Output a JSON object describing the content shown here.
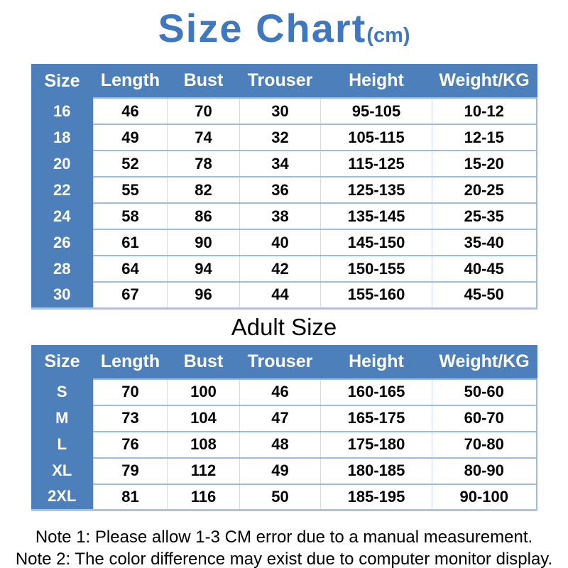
{
  "page": {
    "title": "Size Chart",
    "title_unit": "(cm)",
    "adult_section_title": "Adult Size"
  },
  "colors": {
    "table_header_blue": "#4d80bb",
    "title_blue": "#3f78be",
    "row_border_blue": "#9cbcdf",
    "column_border_blue": "#ccdcee",
    "header_text": "#ffffff",
    "cell_text": "#000000"
  },
  "notes": [
    "Note 1: Please allow 1-3 CM error due to a manual measurement.",
    "Note 2: The color difference may exist due to computer monitor display."
  ],
  "chart_data": [
    {
      "type": "table",
      "title": "Size Chart (cm) - child sizes",
      "columns": [
        "Size",
        "Length",
        "Bust",
        "Trouser",
        "Height",
        "Weight/KG"
      ],
      "rows": [
        [
          "16",
          "46",
          "70",
          "30",
          "95-105",
          "10-12"
        ],
        [
          "18",
          "49",
          "74",
          "32",
          "105-115",
          "12-15"
        ],
        [
          "20",
          "52",
          "78",
          "34",
          "115-125",
          "15-20"
        ],
        [
          "22",
          "55",
          "82",
          "36",
          "125-135",
          "20-25"
        ],
        [
          "24",
          "58",
          "86",
          "38",
          "135-145",
          "25-35"
        ],
        [
          "26",
          "61",
          "90",
          "40",
          "145-150",
          "35-40"
        ],
        [
          "28",
          "64",
          "94",
          "42",
          "150-155",
          "40-45"
        ],
        [
          "30",
          "67",
          "96",
          "44",
          "155-160",
          "45-50"
        ]
      ]
    },
    {
      "type": "table",
      "title": "Adult Size",
      "columns": [
        "Size",
        "Length",
        "Bust",
        "Trouser",
        "Height",
        "Weight/KG"
      ],
      "rows": [
        [
          "S",
          "70",
          "100",
          "46",
          "160-165",
          "50-60"
        ],
        [
          "M",
          "73",
          "104",
          "47",
          "165-175",
          "60-70"
        ],
        [
          "L",
          "76",
          "108",
          "48",
          "175-180",
          "70-80"
        ],
        [
          "XL",
          "79",
          "112",
          "49",
          "180-185",
          "80-90"
        ],
        [
          "2XL",
          "81",
          "116",
          "50",
          "185-195",
          "90-100"
        ]
      ]
    }
  ]
}
